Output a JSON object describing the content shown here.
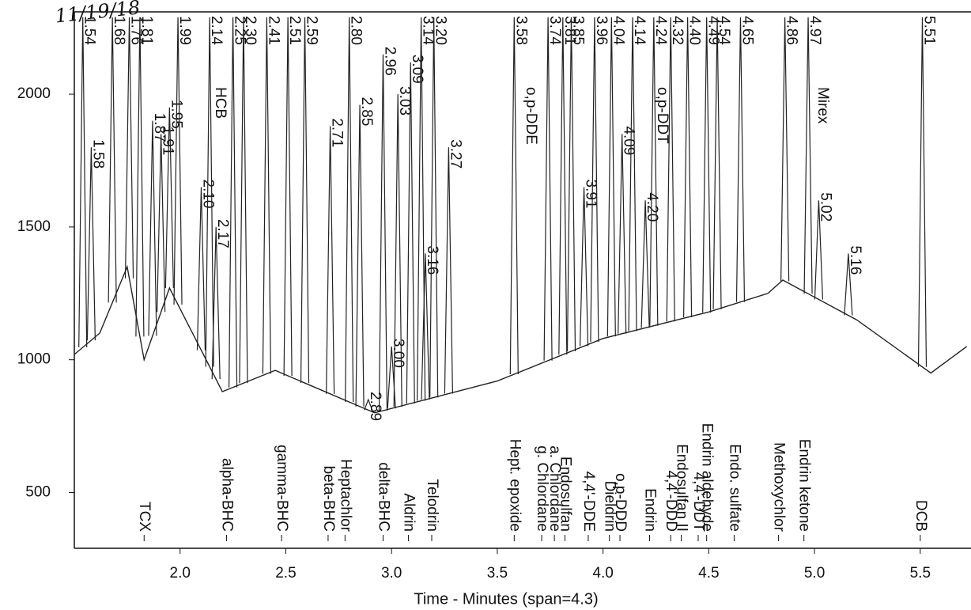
{
  "chart_data": {
    "type": "chromatogram",
    "x_label": "Time - Minutes (span=4.3)",
    "note": "11/19/18",
    "xlim": [
      1.5,
      5.74
    ],
    "ylim": [
      290,
      2310
    ],
    "xticks": [
      {
        "value": 2,
        "label": "2.0"
      },
      2.5,
      {
        "value": 3,
        "label": "3.0"
      },
      3.5,
      {
        "value": 4,
        "label": "4.0"
      },
      4.5,
      {
        "value": 5,
        "label": "5.0"
      },
      5.5
    ],
    "yticks": [
      500,
      1000,
      1500,
      2000
    ],
    "color": "#222",
    "baseline": {
      "x": [
        1.5,
        1.62,
        1.75,
        1.83,
        1.95,
        2.2,
        2.45,
        2.92,
        3.5,
        4.0,
        4.5,
        4.78,
        4.85,
        5.2,
        5.55,
        5.72
      ],
      "values": [
        1020,
        1100,
        1350,
        1000,
        1270,
        880,
        960,
        800,
        920,
        1080,
        1180,
        1250,
        1300,
        1150,
        950,
        1050
      ]
    },
    "peaks": [
      {
        "x": 1.54,
        "y": 2290,
        "label": "1.54"
      },
      {
        "x": 1.58,
        "y": 1800,
        "label": "1.58"
      },
      {
        "x": 1.68,
        "y": 2290,
        "label": "1.68"
      },
      {
        "x": 1.76,
        "y": 2290,
        "label": "1.76"
      },
      {
        "x": 1.81,
        "y": 2290,
        "label": "1.81"
      },
      {
        "x": 1.87,
        "y": 1900,
        "label": "1.87"
      },
      {
        "x": 1.91,
        "y": 1850,
        "label": "1.91"
      },
      {
        "x": 1.95,
        "y": 1950,
        "label": "1.95"
      },
      {
        "x": 1.99,
        "y": 2290,
        "label": "1.99"
      },
      {
        "x": 2.1,
        "y": 1650,
        "label": "2.10"
      },
      {
        "x": 2.14,
        "y": 2290,
        "label": "2.14"
      },
      {
        "x": 2.17,
        "y": 1500,
        "label": "2.17"
      },
      {
        "x": 2.25,
        "y": 2290,
        "label": "2.25"
      },
      {
        "x": 2.3,
        "y": 2290,
        "label": "2.30"
      },
      {
        "x": 2.41,
        "y": 2290,
        "label": "2.41"
      },
      {
        "x": 2.51,
        "y": 2290,
        "label": "2.51"
      },
      {
        "x": 2.59,
        "y": 2290,
        "label": "2.59"
      },
      {
        "x": 2.71,
        "y": 1880,
        "label": "2.71"
      },
      {
        "x": 2.8,
        "y": 2290,
        "label": "2.80"
      },
      {
        "x": 2.85,
        "y": 1960,
        "label": "2.85"
      },
      {
        "x": 2.89,
        "y": 850,
        "label": "2.89"
      },
      {
        "x": 2.96,
        "y": 2150,
        "label": "2.96"
      },
      {
        "x": 3.0,
        "y": 1050,
        "label": "3.00"
      },
      {
        "x": 3.03,
        "y": 2000,
        "label": "3.03"
      },
      {
        "x": 3.09,
        "y": 2120,
        "label": "3.09"
      },
      {
        "x": 3.14,
        "y": 2290,
        "label": "3.14"
      },
      {
        "x": 3.16,
        "y": 1400,
        "label": "3.16"
      },
      {
        "x": 3.2,
        "y": 2290,
        "label": "3.20"
      },
      {
        "x": 3.27,
        "y": 1800,
        "label": "3.27"
      },
      {
        "x": 3.58,
        "y": 2290,
        "label": "3.58"
      },
      {
        "x": 3.74,
        "y": 2290,
        "label": "3.74"
      },
      {
        "x": 3.81,
        "y": 2290,
        "label": "3.81"
      },
      {
        "x": 3.85,
        "y": 2290,
        "label": "3.85"
      },
      {
        "x": 3.91,
        "y": 1650,
        "label": "3.91"
      },
      {
        "x": 3.96,
        "y": 2290,
        "label": "3.96"
      },
      {
        "x": 4.04,
        "y": 2290,
        "label": "4.04"
      },
      {
        "x": 4.09,
        "y": 1850,
        "label": "4.09"
      },
      {
        "x": 4.14,
        "y": 2290,
        "label": "4.14"
      },
      {
        "x": 4.2,
        "y": 1600,
        "label": "4.20"
      },
      {
        "x": 4.24,
        "y": 2290,
        "label": "4.24"
      },
      {
        "x": 4.32,
        "y": 2290,
        "label": "4.32"
      },
      {
        "x": 4.4,
        "y": 2290,
        "label": "4.40"
      },
      {
        "x": 4.49,
        "y": 2290,
        "label": "4.49"
      },
      {
        "x": 4.54,
        "y": 2290,
        "label": "4.54"
      },
      {
        "x": 4.65,
        "y": 2290,
        "label": "4.65"
      },
      {
        "x": 4.86,
        "y": 2290,
        "label": "4.86"
      },
      {
        "x": 4.97,
        "y": 2290,
        "label": "4.97"
      },
      {
        "x": 5.02,
        "y": 1600,
        "label": "5.02"
      },
      {
        "x": 5.16,
        "y": 1400,
        "label": "5.16"
      },
      {
        "x": 5.51,
        "y": 2290,
        "label": "5.51"
      }
    ],
    "peak_names": [
      {
        "x": 2.18,
        "label": "HCB"
      },
      {
        "x": 3.65,
        "label": "o,p-DDE"
      },
      {
        "x": 4.27,
        "label": "o,p-DDT"
      },
      {
        "x": 5.03,
        "label": "Mirex"
      }
    ],
    "compounds": [
      {
        "x": 1.83,
        "label": "TCX"
      },
      {
        "x": 2.22,
        "label": "alpha-BHC"
      },
      {
        "x": 2.48,
        "label": "gamma-BHC"
      },
      {
        "x": 2.7,
        "label": "beta-BHC"
      },
      {
        "x": 2.78,
        "label": "Heptachlor"
      },
      {
        "x": 2.96,
        "label": "delta-BHC"
      },
      {
        "x": 3.08,
        "label": "Aldrin"
      },
      {
        "x": 3.19,
        "label": "Telodrin"
      },
      {
        "x": 3.58,
        "label": "Hept. epoxide"
      },
      {
        "x": 3.71,
        "label": "g. Chlordane"
      },
      {
        "x": 3.77,
        "label": "a. Chlordane"
      },
      {
        "x": 3.82,
        "label": "Endosulfan"
      },
      {
        "x": 3.93,
        "label": "4,4'-DDE"
      },
      {
        "x": 4.03,
        "label": "Dieldrin"
      },
      {
        "x": 4.08,
        "label": "o,p-DDD"
      },
      {
        "x": 4.22,
        "label": "Endrin"
      },
      {
        "x": 4.32,
        "label": "4,4'-DDD"
      },
      {
        "x": 4.37,
        "label": "Endosulfan II"
      },
      {
        "x": 4.45,
        "label": "4,4'-DDT"
      },
      {
        "x": 4.49,
        "label": "Endrin aldehyde"
      },
      {
        "x": 4.62,
        "label": "Endo. sulfate"
      },
      {
        "x": 4.83,
        "label": "Methoxychlor"
      },
      {
        "x": 4.95,
        "label": "Endrin ketone"
      },
      {
        "x": 5.5,
        "label": "DCB"
      }
    ]
  }
}
